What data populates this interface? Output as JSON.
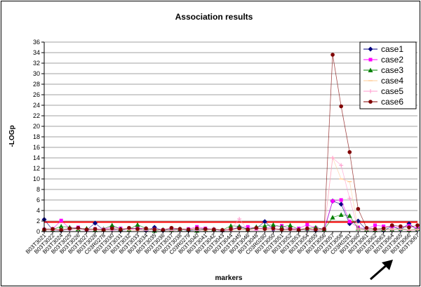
{
  "chart_data": {
    "type": "line",
    "title": "Association results",
    "xlabel": "markers",
    "ylabel": "-LOGp",
    "ylim": [
      0,
      36
    ],
    "yticks": [
      0,
      2,
      4,
      6,
      8,
      10,
      12,
      14,
      16,
      18,
      20,
      22,
      24,
      26,
      28,
      30,
      32,
      34,
      36
    ],
    "grid": "horizontal",
    "legend": "top-right",
    "threshold": {
      "value": 1.8,
      "color": "#ff0000"
    },
    "categories": [
      "B03T3021",
      "B03T3022",
      "B03T3024",
      "B03T3025",
      "B03T3026",
      "B03T3027",
      "B03T3028",
      "C03R0278",
      "B03T3030",
      "B03T3031",
      "B03T3032",
      "B03T3033",
      "B03T3034",
      "B03T3035",
      "B03T3036",
      "B03T3037",
      "B03T3038",
      "C03R0279",
      "B03T3040",
      "B03T3041",
      "B03T3042",
      "B03T3043",
      "B03T3044",
      "B03T3045",
      "B03T3046",
      "B03T3048",
      "C03R0280",
      "B03T3050",
      "B03T3051",
      "B03T3052",
      "B03T3053",
      "B03T3054",
      "B03T3055",
      "B03T3056",
      "B03T3057",
      "B03T3058",
      "C03R0281",
      "B03T3060",
      "B03T3061",
      "B03T3062",
      "B03T3063",
      "B03T3064",
      "B03T3065",
      "B03T3066",
      "B03T3067"
    ],
    "series": [
      {
        "name": "case1",
        "color": "#000080",
        "marker": "diamond",
        "values": [
          2.3,
          0.3,
          0.2,
          0.5,
          0.6,
          0.3,
          1.6,
          0.3,
          0.4,
          0.2,
          0.5,
          0.6,
          0.2,
          0.8,
          0.2,
          0.3,
          0.4,
          0.2,
          0.3,
          0.5,
          0.4,
          0.2,
          0.3,
          0.9,
          0.5,
          0.6,
          1.9,
          0.4,
          0.3,
          0.5,
          0.3,
          0.4,
          0.2,
          0.3,
          5.8,
          5.2,
          1.5,
          2.0,
          0.3,
          0.4,
          0.2,
          1.0,
          0.4,
          1.5,
          0.3
        ]
      },
      {
        "name": "case2",
        "color": "#ff00ff",
        "marker": "square",
        "values": [
          0.4,
          0.5,
          2.1,
          0.6,
          0.8,
          0.3,
          0.5,
          0.4,
          0.9,
          0.6,
          0.4,
          0.7,
          0.5,
          0.4,
          0.3,
          0.6,
          0.4,
          0.5,
          0.9,
          0.6,
          0.4,
          0.2,
          0.3,
          0.8,
          0.9,
          0.6,
          0.7,
          0.9,
          1.1,
          0.5,
          0.6,
          1.3,
          0.7,
          0.5,
          5.8,
          6.0,
          1.9,
          0.8,
          0.5,
          1.2,
          1.0,
          0.9,
          0.8,
          1.1,
          0.6
        ]
      },
      {
        "name": "case3",
        "color": "#008000",
        "marker": "triangle",
        "values": [
          0.5,
          0.4,
          1.0,
          0.8,
          0.5,
          0.6,
          0.3,
          0.5,
          1.2,
          0.5,
          0.4,
          1.3,
          0.6,
          0.2,
          0.4,
          0.3,
          0.5,
          0.4,
          0.2,
          0.4,
          0.5,
          0.3,
          1.1,
          1.0,
          0.4,
          0.9,
          1.1,
          1.3,
          0.9,
          1.2,
          0.4,
          0.6,
          0.8,
          0.4,
          2.7,
          3.2,
          3.0,
          0.6,
          0.4,
          0.3,
          0.5,
          0.4,
          0.6,
          0.3,
          0.5
        ]
      },
      {
        "name": "case4",
        "color": "#ffcc99",
        "marker": "dash",
        "values": [
          0.3,
          0.4,
          0.2,
          0.6,
          0.4,
          0.5,
          0.3,
          0.2,
          0.4,
          0.6,
          0.3,
          0.2,
          0.5,
          0.4,
          0.3,
          0.2,
          0.4,
          0.3,
          0.5,
          0.2,
          0.4,
          0.3,
          0.2,
          0.4,
          0.3,
          0.5,
          0.3,
          0.4,
          0.2,
          0.3,
          0.4,
          0.5,
          0.3,
          0.4,
          14.0,
          10.0,
          9.5,
          0.5,
          0.3,
          0.4,
          0.3,
          0.5,
          0.4,
          0.3,
          0.4
        ]
      },
      {
        "name": "case5",
        "color": "#ff99cc",
        "marker": "plus",
        "values": [
          0.3,
          0.2,
          0.4,
          0.3,
          0.5,
          0.2,
          0.3,
          0.4,
          0.2,
          0.3,
          0.5,
          0.3,
          0.2,
          0.4,
          0.3,
          0.2,
          0.3,
          0.4,
          0.2,
          0.3,
          0.5,
          0.2,
          0.4,
          2.4,
          0.3,
          0.2,
          0.4,
          0.3,
          0.5,
          0.2,
          0.3,
          0.4,
          0.2,
          0.3,
          14.0,
          12.6,
          6.3,
          0.4,
          0.3,
          0.2,
          0.4,
          0.3,
          0.5,
          0.2,
          0.3
        ]
      },
      {
        "name": "case6",
        "color": "#800000",
        "marker": "circle",
        "values": [
          0.4,
          0.5,
          0.3,
          0.6,
          0.7,
          0.4,
          0.5,
          0.3,
          0.6,
          0.4,
          0.7,
          0.5,
          0.6,
          0.4,
          0.3,
          0.7,
          0.5,
          0.4,
          0.6,
          0.5,
          0.4,
          0.3,
          0.5,
          0.6,
          0.4,
          0.7,
          0.5,
          0.6,
          0.4,
          0.5,
          0.3,
          0.6,
          0.4,
          0.5,
          33.6,
          23.8,
          15.1,
          4.3,
          0.7,
          0.5,
          0.6,
          1.2,
          1.0,
          0.8,
          1.2
        ]
      }
    ]
  }
}
